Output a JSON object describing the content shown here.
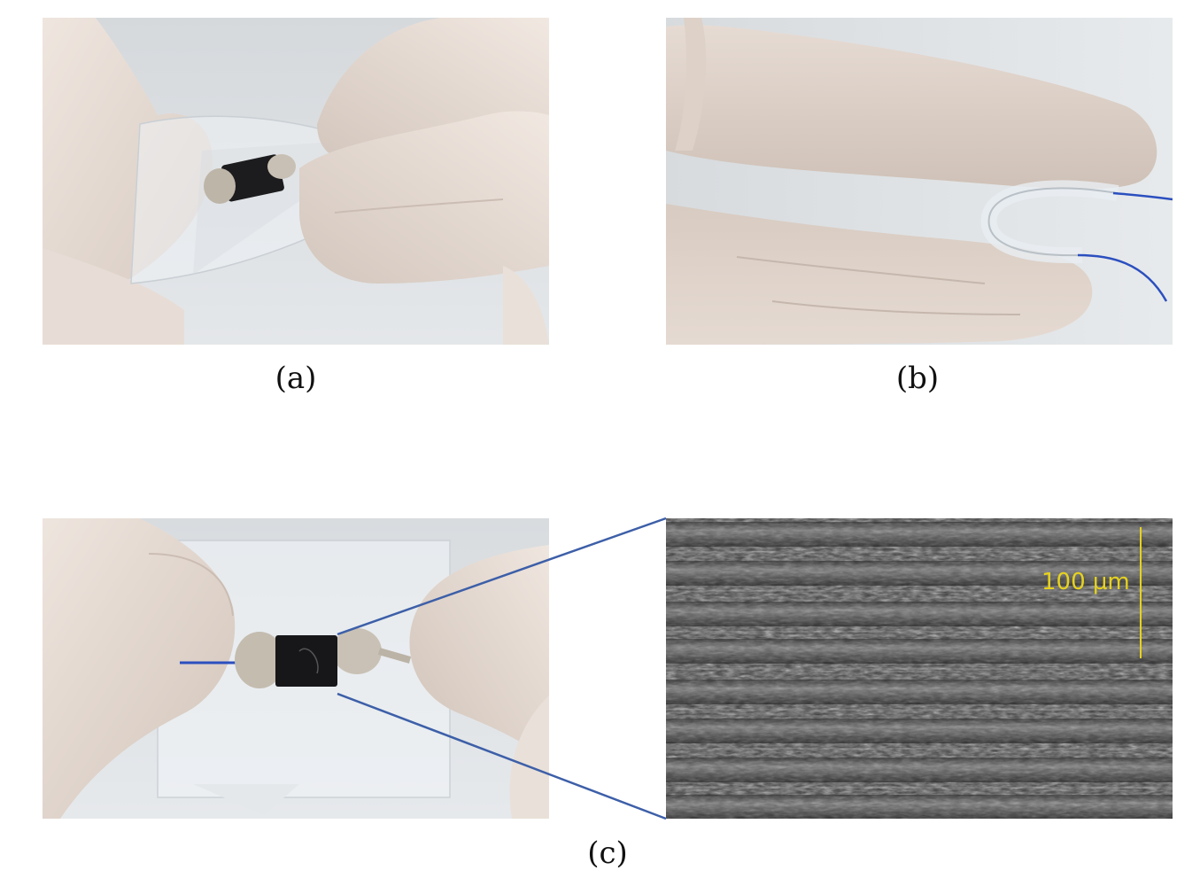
{
  "figure": {
    "labels": {
      "a": "(a)",
      "b": "(b)",
      "c": "(c)"
    },
    "sem": {
      "scale_bar_text": "100 µm",
      "scale_bar_color": "#e6d21e"
    },
    "colors": {
      "zoom_line": "#3d5fa8",
      "glove": "#e8ddd6",
      "background": "#dfe3e6",
      "wire": "#2b4fbf"
    }
  }
}
